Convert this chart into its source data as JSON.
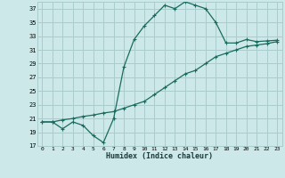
{
  "xlabel": "Humidex (Indice chaleur)",
  "ylabel": "",
  "background_color": "#cce8e8",
  "grid_color": "#aacccc",
  "line_color": "#1a6b5e",
  "xlim": [
    -0.5,
    23.5
  ],
  "ylim": [
    17,
    38
  ],
  "yticks": [
    17,
    19,
    21,
    23,
    25,
    27,
    29,
    31,
    33,
    35,
    37
  ],
  "xticks": [
    0,
    1,
    2,
    3,
    4,
    5,
    6,
    7,
    8,
    9,
    10,
    11,
    12,
    13,
    14,
    15,
    16,
    17,
    18,
    19,
    20,
    21,
    22,
    23
  ],
  "series1_x": [
    0,
    1,
    2,
    3,
    4,
    5,
    6,
    7,
    8,
    9,
    10,
    11,
    12,
    13,
    14,
    15,
    16,
    17,
    18,
    19,
    20,
    21,
    22,
    23
  ],
  "series1_y": [
    20.5,
    20.5,
    19.5,
    20.5,
    20.0,
    18.5,
    17.5,
    21.0,
    28.5,
    32.5,
    34.5,
    36.0,
    37.5,
    37.0,
    38.0,
    37.5,
    37.0,
    35.0,
    32.0,
    32.0,
    32.5,
    32.2,
    32.3,
    32.4
  ],
  "series2_x": [
    0,
    1,
    2,
    3,
    4,
    5,
    6,
    7,
    8,
    9,
    10,
    11,
    12,
    13,
    14,
    15,
    16,
    17,
    18,
    19,
    20,
    21,
    22,
    23
  ],
  "series2_y": [
    20.5,
    20.5,
    20.8,
    21.0,
    21.3,
    21.5,
    21.8,
    22.0,
    22.5,
    23.0,
    23.5,
    24.5,
    25.5,
    26.5,
    27.5,
    28.0,
    29.0,
    30.0,
    30.5,
    31.0,
    31.5,
    31.7,
    31.9,
    32.2
  ]
}
